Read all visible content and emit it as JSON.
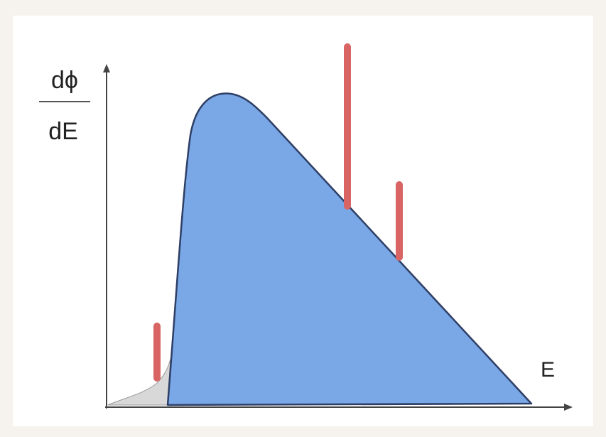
{
  "y_axis_label": {
    "numerator": "dϕ",
    "denominator": "dE"
  },
  "x_axis_label": "E"
}
